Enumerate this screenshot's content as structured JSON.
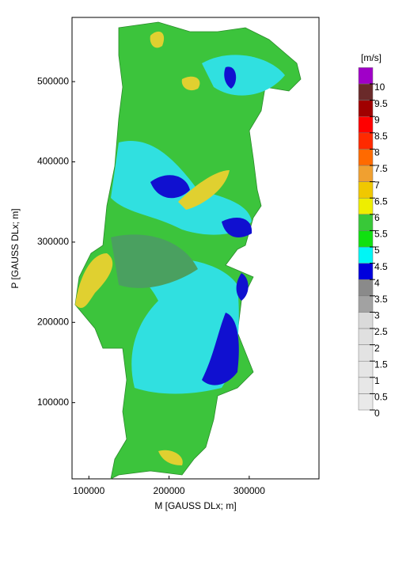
{
  "axes": {
    "xlabel": "M [GAUSS DLx; m]",
    "ylabel": "P [GAUSS DLx; m]",
    "xlim": [
      79000,
      387000
    ],
    "ylim": [
      5000,
      580000
    ],
    "xticks": [
      100000,
      200000,
      300000
    ],
    "yticks": [
      100000,
      200000,
      300000,
      400000,
      500000
    ]
  },
  "colorbar": {
    "unit": "[m/s]",
    "labels": [
      0,
      0.5,
      1,
      1.5,
      2,
      2.5,
      3,
      3.5,
      4,
      4.5,
      5,
      5.5,
      6,
      6.5,
      7,
      7.5,
      8,
      8.5,
      9,
      9.5,
      10
    ],
    "colors": [
      "#e9e9e9",
      "#e7e7e7",
      "#e5e5e5",
      "#e3e3e3",
      "#e0e0e0",
      "#dadada",
      "#a2a2a2",
      "#8a8a8a",
      "#0000dc",
      "#00f6f6",
      "#10e010",
      "#38c838",
      "#eeee00",
      "#f0c800",
      "#f0a030",
      "#ff6a00",
      "#ff2a00",
      "#ff0000",
      "#a00000",
      "#6a2a2a",
      "#a000c8"
    ]
  }
}
